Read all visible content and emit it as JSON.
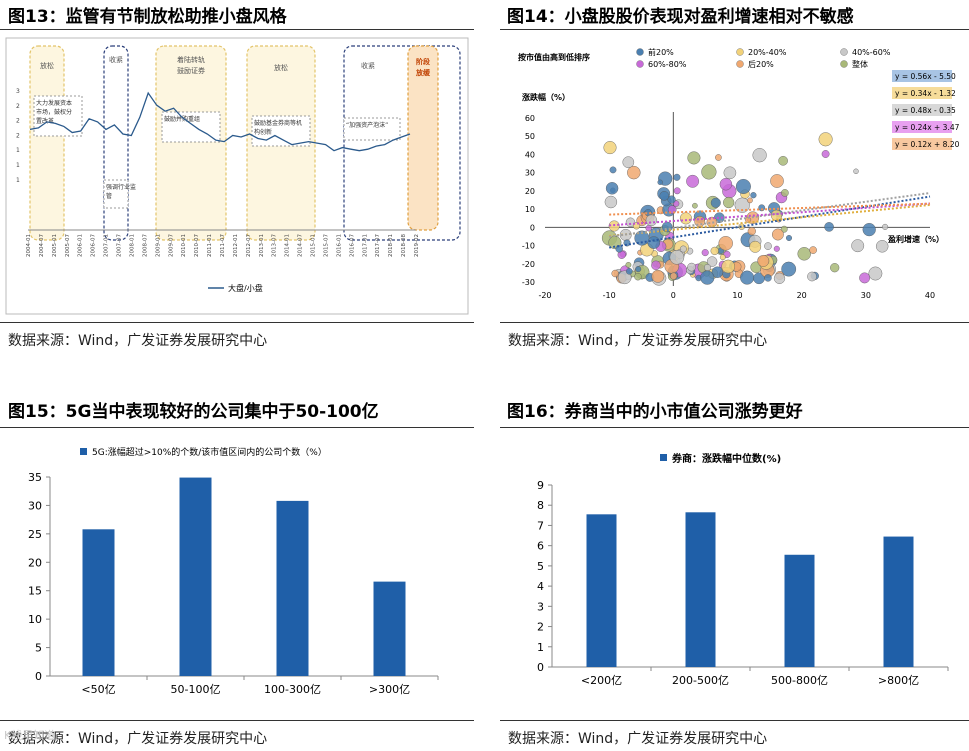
{
  "fig13": {
    "title": "图13：监管有节制放松助推小盘风格",
    "source": "数据来源：Wind，广发证券发展研究中心",
    "legend": "大盘/小盘",
    "y_ticks": [
      "3",
      "2",
      "2",
      "2",
      "1",
      "1",
      "1"
    ],
    "x_ticks": [
      "2004-01",
      "2004-07",
      "2005-01",
      "2005-07",
      "2006-01",
      "2006-07",
      "2007-01",
      "2007-07",
      "2008-01",
      "2008-07",
      "2009-01",
      "2009-07",
      "2010-01",
      "2010-07",
      "2011-01",
      "2011-07",
      "2012-01",
      "2012-07",
      "2013-01",
      "2013-07",
      "2014-01",
      "2014-07",
      "2015-01",
      "2015-07",
      "2016-01",
      "2016-07",
      "2017-01",
      "2017-07",
      "2018-01",
      "2018-08",
      "2019-02"
    ],
    "phase_labels": [
      "放松",
      "收紧",
      "着陆转轨 鼓励证券",
      "放松",
      "收紧",
      "阶段 放缓"
    ],
    "notes": [
      "大力发展资本市场，鼓权分置改革",
      "强调行业监管",
      "鼓励并购重组",
      "鼓励基金券商等机构创新",
      "“加强资产泡沫”"
    ],
    "series": [
      1.7,
      1.75,
      1.95,
      1.9,
      1.8,
      1.6,
      1.65,
      2.05,
      1.95,
      1.7,
      1.85,
      1.55,
      1.5,
      2.1,
      2.9,
      2.5,
      2.3,
      2.4,
      2.1,
      1.9,
      1.7,
      1.55,
      1.35,
      1.3,
      1.5,
      1.45,
      1.55,
      1.4,
      1.35,
      1.5,
      1.35,
      1.2,
      1.25,
      1.3,
      1.25,
      1.2,
      1.0,
      1.1,
      1.05,
      1.0,
      1.05,
      1.15,
      1.2,
      1.35,
      1.45,
      1.55
    ]
  },
  "fig14": {
    "title": "图14：小盘股股价表现对盈利增速相对不敏感",
    "source": "数据来源：Wind，广发证券发展研究中心",
    "legend_title": "按市值由高到低排序",
    "legend": [
      {
        "name": "前20%",
        "color": "#4a7fb0"
      },
      {
        "name": "20%-40%",
        "color": "#f2d27a"
      },
      {
        "name": "40%-60%",
        "color": "#c8c8c8"
      },
      {
        "name": "60%-80%",
        "color": "#c86ad8"
      },
      {
        "name": "后20%",
        "color": "#f0a870"
      },
      {
        "name": "整体",
        "color": "#a8b878"
      }
    ],
    "ylabel": "涨跌幅（%）",
    "xlabel": "盈利增速（%）",
    "x_ticks": [
      "-20",
      "-10",
      "0",
      "10",
      "20",
      "30",
      "40"
    ],
    "y_ticks": [
      "60",
      "50",
      "40",
      "30",
      "20",
      "10",
      "0",
      "-10",
      "-20",
      "-30"
    ],
    "equations": [
      {
        "text": "y = 0.56x - 5.50",
        "bg": "#a8c4e4"
      },
      {
        "text": "y = 0.34x - 1.32",
        "bg": "#f6dc9a"
      },
      {
        "text": "y = 0.48x - 0.35",
        "bg": "#d8d8d8"
      },
      {
        "text": "y = 0.24x + 3.47",
        "bg": "#e8a0f0"
      },
      {
        "text": "y = 0.12x + 8.20",
        "bg": "#f8c8a0"
      }
    ]
  },
  "fig15": {
    "title": "图15：5G当中表现较好的公司集中于50-100亿",
    "source": "数据来源：Wind，广发证券发展研究中心",
    "chart_data": {
      "type": "bar",
      "categories": [
        "<50亿",
        "50-100亿",
        "100-300亿",
        ">300亿"
      ],
      "values": [
        25.8,
        34.9,
        30.8,
        16.6
      ],
      "legend": "5G:涨幅超过>10%的个数/该市值区间内的公司个数（%）",
      "ylim": [
        0,
        35
      ],
      "y_ticks": [
        "35",
        "30",
        "25",
        "20",
        "15",
        "10",
        "5",
        "0"
      ]
    }
  },
  "fig16": {
    "title": "图16：券商当中的小市值公司涨势更好",
    "source": "数据来源：Wind，广发证券发展研究中心",
    "chart_data": {
      "type": "bar",
      "categories": [
        "<200亿",
        "200-500亿",
        "500-800亿",
        ">800亿"
      ],
      "values": [
        7.55,
        7.65,
        5.55,
        6.45
      ],
      "legend": "券商：涨跌幅中位数(%)",
      "ylim": [
        0,
        9
      ],
      "y_ticks": [
        "9",
        "8",
        "7",
        "6",
        "5",
        "4",
        "3",
        "2",
        "1",
        "0"
      ]
    }
  },
  "watermark": "K线早知道",
  "colors": {
    "bar": "#1f5fa8",
    "line": "#2b5a8c"
  }
}
